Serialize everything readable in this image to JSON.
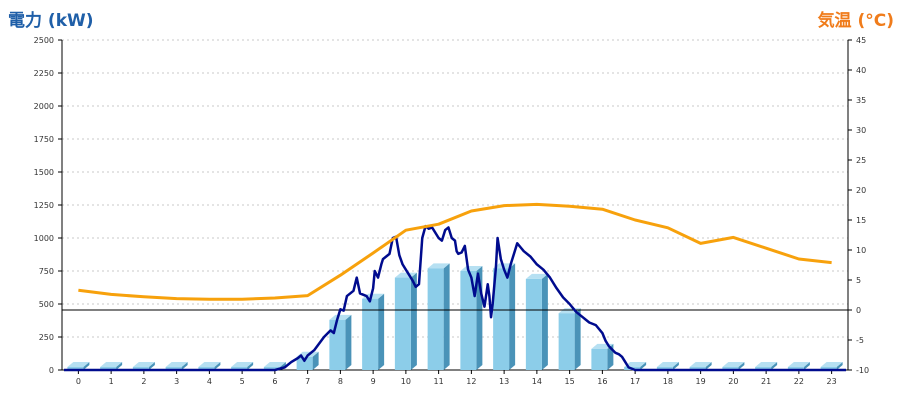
{
  "chart_data": {
    "type": "bar",
    "left_axis_title": "電力 (kW)",
    "right_axis_title": "気温 (°C)",
    "colors": {
      "left_title": "#1f5fa8",
      "right_title": "#f07c1b",
      "bar_front": "#8ccde9",
      "bar_side": "#4a93b8",
      "bar_top": "#b6e0f2",
      "power_line": "#000b8e",
      "temp_line": "#f7a10c",
      "zero_line": "#000000",
      "grid": "#c8c8c8"
    },
    "categories": [
      "0",
      "1",
      "2",
      "3",
      "4",
      "5",
      "6",
      "7",
      "8",
      "9",
      "10",
      "11",
      "12",
      "13",
      "14",
      "15",
      "16",
      "17",
      "18",
      "19",
      "20",
      "21",
      "22",
      "23"
    ],
    "left_axis": {
      "min": 0,
      "max": 2500,
      "ticks": [
        0,
        250,
        500,
        750,
        1000,
        1250,
        1500,
        1750,
        2000,
        2250,
        2500
      ]
    },
    "right_axis": {
      "min": -10,
      "max": 45,
      "ticks": [
        -10,
        -5,
        0,
        5,
        10,
        15,
        20,
        25,
        30,
        35,
        40,
        45
      ]
    },
    "grid": true,
    "series": [
      {
        "kind": "bar",
        "axis": "left",
        "values": [
          0,
          0,
          0,
          0,
          0,
          0,
          0,
          100,
          380,
          540,
          700,
          770,
          750,
          770,
          690,
          430,
          160,
          0,
          0,
          0,
          0,
          0,
          0,
          0
        ]
      },
      {
        "kind": "line",
        "axis": "left",
        "x": [
          6,
          6.3,
          6.5,
          6.7,
          6.8,
          6.9,
          7,
          7.2,
          7.5,
          7.7,
          7.8,
          7.9,
          8,
          8.1,
          8.2,
          8.4,
          8.5,
          8.6,
          8.8,
          8.9,
          9,
          9.05,
          9.15,
          9.25,
          9.3,
          9.5,
          9.6,
          9.7,
          9.8,
          9.9,
          10,
          10.2,
          10.3,
          10.4,
          10.5,
          10.6,
          10.7,
          10.8,
          11,
          11.1,
          11.2,
          11.3,
          11.4,
          11.5,
          11.55,
          11.6,
          11.7,
          11.8,
          11.9,
          12,
          12.1,
          12.2,
          12.3,
          12.4,
          12.5,
          12.55,
          12.6,
          12.65,
          12.75,
          12.8,
          12.9,
          13,
          13.1,
          13.2,
          13.3,
          13.4,
          13.5,
          13.6,
          13.8,
          14,
          14.2,
          14.4,
          14.6,
          14.8,
          15,
          15.2,
          15.4,
          15.5,
          15.6,
          15.8,
          16,
          16.1,
          16.2,
          16.4,
          16.5,
          16.6,
          16.7,
          16.8
        ],
        "values": [
          0,
          20,
          60,
          90,
          110,
          70,
          110,
          150,
          250,
          300,
          280,
          380,
          460,
          450,
          560,
          600,
          700,
          580,
          560,
          520,
          620,
          750,
          700,
          800,
          840,
          880,
          1000,
          1010,
          870,
          800,
          760,
          680,
          630,
          650,
          1000,
          1090,
          1070,
          1080,
          1000,
          980,
          1060,
          1080,
          1000,
          980,
          900,
          880,
          890,
          940,
          760,
          700,
          560,
          730,
          580,
          480,
          650,
          560,
          400,
          500,
          780,
          1000,
          840,
          760,
          700,
          800,
          880,
          960,
          930,
          900,
          860,
          800,
          760,
          700,
          620,
          550,
          500,
          440,
          400,
          380,
          360,
          340,
          280,
          220,
          180,
          130,
          120,
          100,
          60,
          20
        ],
        "note": ""
      },
      {
        "kind": "line",
        "axis": "right",
        "x": [
          0,
          1,
          2,
          3,
          4,
          5,
          6,
          7,
          8,
          9,
          10,
          11,
          12,
          13,
          14,
          15,
          16,
          17,
          18,
          19,
          20,
          21,
          22,
          23
        ],
        "values": [
          3.3,
          2.6,
          2.2,
          1.9,
          1.8,
          1.8,
          2.0,
          2.4,
          5.8,
          9.5,
          13.3,
          14.3,
          16.5,
          17.4,
          17.6,
          17.3,
          16.8,
          15.0,
          13.7,
          11.1,
          12.1,
          10.3,
          8.5,
          7.9
        ]
      }
    ]
  }
}
